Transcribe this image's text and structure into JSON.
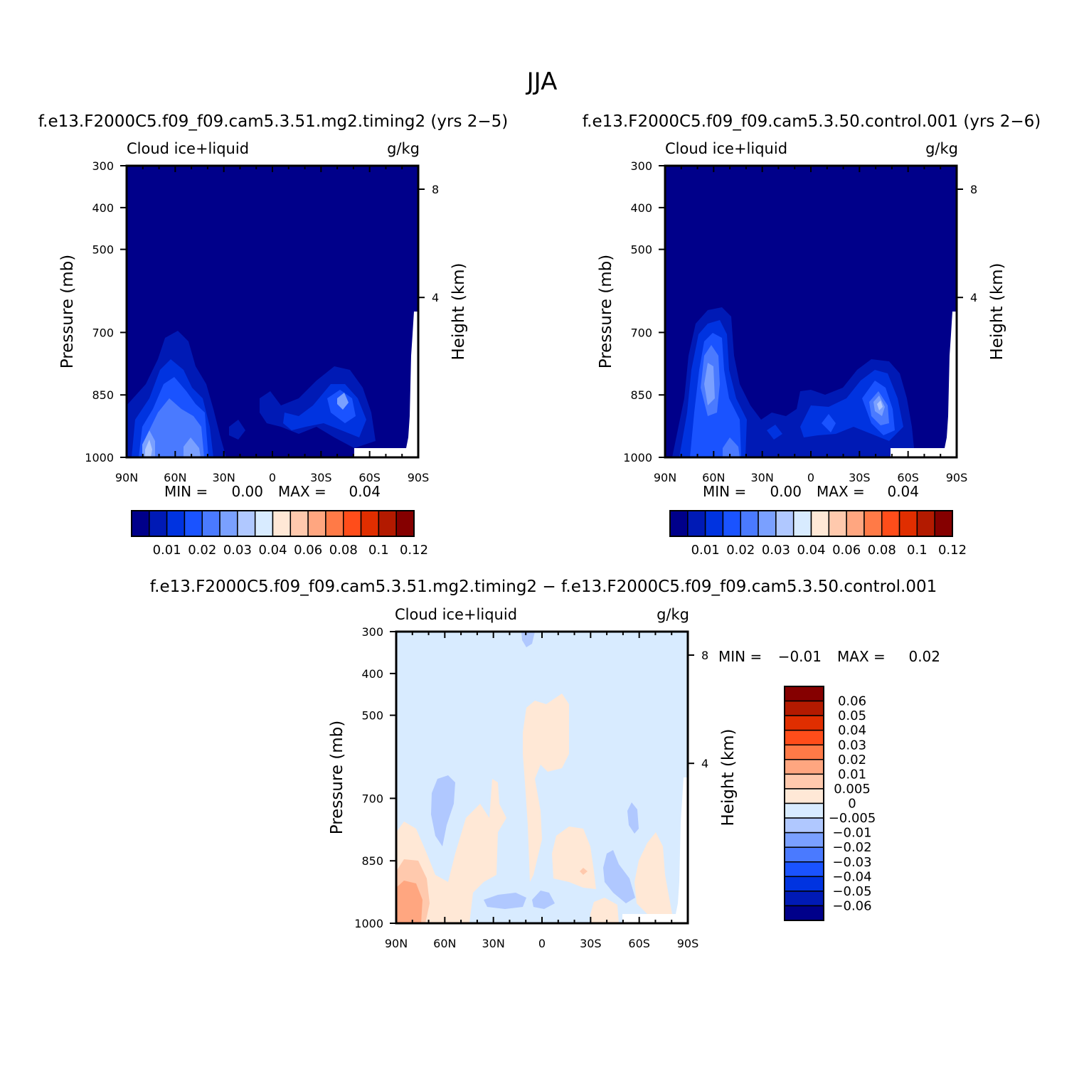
{
  "figure": {
    "title": "JJA",
    "diff_title": "f.e13.F2000C5.f09_f09.cam5.3.51.mg2.timing2 − f.e13.F2000C5.f09_f09.cam5.3.50.control.001"
  },
  "chart_data": [
    {
      "type": "heatmap",
      "title": "f.e13.F2000C5.f09_f09.cam5.3.51.mg2.timing2 (yrs 2−5)",
      "variable": "Cloud ice+liquid",
      "units": "g/kg",
      "ylabel": "Pressure (mb)",
      "y2label": "Height (km)",
      "x_ticks": [
        "90N",
        "60N",
        "30N",
        "0",
        "30S",
        "60S",
        "90S"
      ],
      "y_ticks": [
        "300",
        "400",
        "500",
        "700",
        "850",
        "1000"
      ],
      "y2_ticks": [
        "8",
        "4"
      ],
      "min_label": "MIN =",
      "min_value": "0.00",
      "max_label": "MAX =",
      "max_value": "0.04",
      "colorbar_labels": [
        "0.01",
        "0.02",
        "0.03",
        "0.04",
        "0.06",
        "0.08",
        "0.1",
        "0.12"
      ],
      "colors": [
        "#00008a",
        "#001ab5",
        "#0033e0",
        "#1a53ff",
        "#4a7aff",
        "#7aa0ff",
        "#b0c8ff",
        "#d8ebff",
        "#ffe8d6",
        "#ffc9ad",
        "#ffa680",
        "#ff7a47",
        "#ff4d1a",
        "#e02e00",
        "#b31a00",
        "#850000"
      ]
    },
    {
      "type": "heatmap",
      "title": "f.e13.F2000C5.f09_f09.cam5.3.50.control.001 (yrs 2−6)",
      "variable": "Cloud ice+liquid",
      "units": "g/kg",
      "ylabel": "Pressure (mb)",
      "y2label": "Height (km)",
      "x_ticks": [
        "90N",
        "60N",
        "30N",
        "0",
        "30S",
        "60S",
        "90S"
      ],
      "y_ticks": [
        "300",
        "400",
        "500",
        "700",
        "850",
        "1000"
      ],
      "y2_ticks": [
        "8",
        "4"
      ],
      "min_label": "MIN =",
      "min_value": "0.00",
      "max_label": "MAX =",
      "max_value": "0.04",
      "colorbar_labels": [
        "0.01",
        "0.02",
        "0.03",
        "0.04",
        "0.06",
        "0.08",
        "0.1",
        "0.12"
      ],
      "colors": [
        "#00008a",
        "#001ab5",
        "#0033e0",
        "#1a53ff",
        "#4a7aff",
        "#7aa0ff",
        "#b0c8ff",
        "#d8ebff",
        "#ffe8d6",
        "#ffc9ad",
        "#ffa680",
        "#ff7a47",
        "#ff4d1a",
        "#e02e00",
        "#b31a00",
        "#850000"
      ]
    },
    {
      "type": "heatmap",
      "variable": "Cloud ice+liquid",
      "units": "g/kg",
      "ylabel": "Pressure (mb)",
      "y2label": "Height (km)",
      "x_ticks": [
        "90N",
        "60N",
        "30N",
        "0",
        "30S",
        "60S",
        "90S"
      ],
      "y_ticks": [
        "300",
        "400",
        "500",
        "700",
        "850",
        "1000"
      ],
      "y2_ticks": [
        "8",
        "4"
      ],
      "min_label": "MIN =",
      "min_value": "−0.01",
      "max_label": "MAX =",
      "max_value": "0.02",
      "colorbar_labels": [
        "0.06",
        "0.05",
        "0.04",
        "0.03",
        "0.02",
        "0.01",
        "0.005",
        "0",
        "−0.005",
        "−0.01",
        "−0.02",
        "−0.03",
        "−0.04",
        "−0.05",
        "−0.06"
      ],
      "colors": [
        "#850000",
        "#b31a00",
        "#e02e00",
        "#ff4d1a",
        "#ff7a47",
        "#ffa680",
        "#ffc9ad",
        "#ffe8d6",
        "#d8ebff",
        "#b0c8ff",
        "#7aa0ff",
        "#4a7aff",
        "#1a53ff",
        "#0033e0",
        "#001ab5",
        "#00008a"
      ]
    }
  ]
}
